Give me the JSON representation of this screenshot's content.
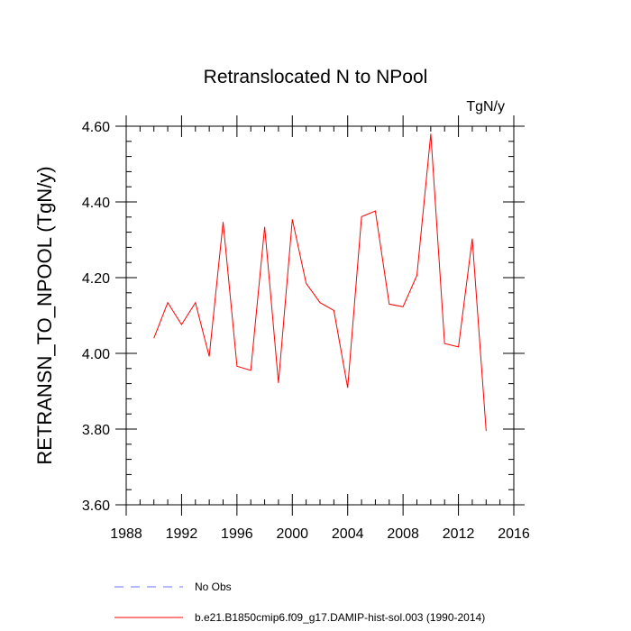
{
  "chart_data": {
    "type": "line",
    "title": "Retranslocated N to NPool",
    "units": "TgN/y",
    "ylabel": "RETRANSN_TO_NPOOL  (TgN/y)",
    "xlabel": "",
    "xlim": [
      1988,
      2016
    ],
    "ylim": [
      3.6,
      4.6
    ],
    "x_ticks": [
      1988,
      1992,
      1996,
      2000,
      2004,
      2008,
      2012,
      2016
    ],
    "y_ticks": [
      3.6,
      3.8,
      4.0,
      4.2,
      4.4,
      4.6
    ],
    "y_tick_labels": [
      "3.60",
      "3.80",
      "4.00",
      "4.20",
      "4.40",
      "4.60"
    ],
    "grid": false,
    "legend_position": "bottom",
    "series": [
      {
        "name": "b.e21.B1850cmip6.f09_g17.DAMIP-hist-sol.003 (1990-2014)",
        "color": "#ff0000",
        "style": "solid",
        "x": [
          1990,
          1991,
          1992,
          1993,
          1994,
          1995,
          1996,
          1997,
          1998,
          1999,
          2000,
          2001,
          2002,
          2003,
          2004,
          2005,
          2006,
          2007,
          2008,
          2009,
          2010,
          2011,
          2012,
          2013,
          2014
        ],
        "y": [
          4.04,
          4.134,
          4.076,
          4.134,
          3.992,
          4.347,
          3.966,
          3.955,
          4.334,
          3.922,
          4.354,
          4.185,
          4.134,
          4.113,
          3.909,
          4.361,
          4.376,
          4.13,
          4.123,
          4.206,
          4.58,
          4.026,
          4.017,
          4.303,
          3.795
        ]
      }
    ],
    "legend": [
      {
        "label": "No Obs",
        "color": "#6f6fff",
        "style": "dashed"
      },
      {
        "label": "b.e21.B1850cmip6.f09_g17.DAMIP-hist-sol.003 (1990-2014)",
        "color": "#ff0000",
        "style": "solid"
      }
    ]
  }
}
